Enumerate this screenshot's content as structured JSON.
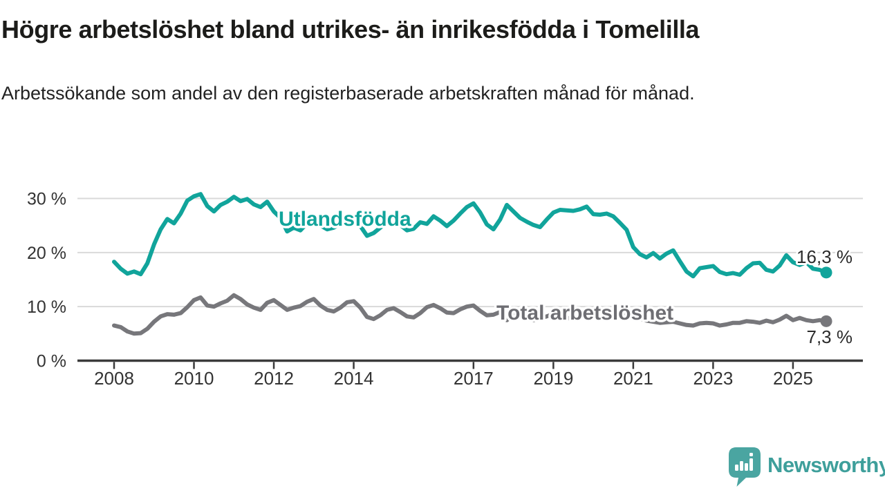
{
  "header": {
    "title": "Högre arbetslöshet bland utrikes- än inrikesfödda i Tomelilla",
    "subtitle": "Arbetssökande som andel av den registerbaserade arbetskraften månad för månad."
  },
  "chart_data": {
    "type": "line",
    "title": "Högre arbetslöshet bland utrikes- än inrikesfödda i Tomelilla",
    "unit": "%",
    "x_axis": {
      "range": [
        2008.0,
        2025.83
      ],
      "tick_years": [
        2008,
        2010,
        2012,
        2014,
        2017,
        2019,
        2021,
        2023,
        2025
      ],
      "tick_labels": [
        "2008",
        "2010",
        "2012",
        "2014",
        "2017",
        "2019",
        "2021",
        "2023",
        "2025"
      ]
    },
    "y_axis": {
      "range": [
        0,
        31.5
      ],
      "ticks": [
        0,
        10,
        20,
        30
      ],
      "tick_labels": [
        "0 %",
        "10 %",
        "20 %",
        "30 %"
      ],
      "grid": true
    },
    "x_start_year": 2008.0,
    "x_step_years": 0.166667,
    "series": [
      {
        "name": "Utlandsfödda",
        "color": "#11a49b",
        "label_color": "#11a49b",
        "end_value": 16.3,
        "end_label": "16,3 %",
        "values": [
          18.3,
          17.0,
          16.1,
          16.5,
          16.0,
          18.0,
          21.5,
          24.3,
          26.2,
          25.4,
          27.2,
          29.6,
          30.4,
          30.8,
          28.6,
          27.6,
          28.8,
          29.4,
          30.3,
          29.5,
          29.9,
          28.9,
          28.4,
          29.4,
          27.6,
          26.4,
          23.9,
          24.6,
          24.1,
          25.4,
          26.2,
          25.0,
          24.3,
          24.6,
          25.3,
          26.1,
          26.6,
          24.9,
          23.1,
          23.6,
          24.6,
          25.6,
          26.3,
          25.1,
          24.1,
          24.4,
          25.6,
          25.3,
          26.7,
          25.9,
          24.9,
          25.9,
          27.2,
          28.4,
          29.1,
          27.4,
          25.2,
          24.3,
          26.1,
          28.8,
          27.6,
          26.4,
          25.7,
          25.1,
          24.7,
          26.1,
          27.4,
          27.9,
          27.8,
          27.7,
          28.0,
          28.5,
          27.1,
          27.0,
          27.2,
          26.7,
          25.5,
          24.2,
          21.0,
          19.7,
          19.1,
          19.9,
          18.9,
          19.8,
          20.4,
          18.4,
          16.5,
          15.6,
          17.1,
          17.3,
          17.5,
          16.4,
          16.0,
          16.2,
          15.9,
          17.1,
          18.0,
          18.1,
          16.8,
          16.5,
          17.6,
          19.5,
          18.2,
          17.7,
          18.2,
          17.0,
          16.8,
          16.3
        ]
      },
      {
        "name": "Total arbetslöshet",
        "color": "#77777b",
        "label_color": "#6e6e73",
        "end_value": 7.3,
        "end_label": "7,3 %",
        "values": [
          6.5,
          6.2,
          5.4,
          5.0,
          5.1,
          5.9,
          7.2,
          8.2,
          8.6,
          8.5,
          8.8,
          9.9,
          11.2,
          11.7,
          10.2,
          10.0,
          10.6,
          11.1,
          12.1,
          11.4,
          10.4,
          9.8,
          9.4,
          10.7,
          11.2,
          10.3,
          9.4,
          9.8,
          10.1,
          10.9,
          11.4,
          10.2,
          9.4,
          9.1,
          9.8,
          10.8,
          11.0,
          9.8,
          8.1,
          7.7,
          8.4,
          9.4,
          9.7,
          9.0,
          8.2,
          8.0,
          8.8,
          9.9,
          10.3,
          9.7,
          8.9,
          8.8,
          9.5,
          10.0,
          10.2,
          9.2,
          8.4,
          8.5,
          9.0,
          7.5,
          8.4,
          8.1,
          7.7,
          7.5,
          7.8,
          8.2,
          8.6,
          8.3,
          7.9,
          7.8,
          8.0,
          8.4,
          8.7,
          8.8,
          9.2,
          9.0,
          8.7,
          8.5,
          8.2,
          7.8,
          7.4,
          7.2,
          7.0,
          7.1,
          7.2,
          6.9,
          6.6,
          6.5,
          6.9,
          7.0,
          6.9,
          6.5,
          6.7,
          7.0,
          7.0,
          7.3,
          7.2,
          7.0,
          7.4,
          7.1,
          7.6,
          8.3,
          7.5,
          7.9,
          7.5,
          7.3,
          7.5,
          7.3
        ]
      }
    ],
    "legend_position": "inline-labels",
    "grid_color": "#d9d9d9",
    "axis_color": "#3a3a3a",
    "end_label_color": "#2b2b2b"
  },
  "footer": {
    "brand": "Newsworthy",
    "logo_color": "#4aa5a1",
    "brand_text_color": "#3e9f9b"
  }
}
